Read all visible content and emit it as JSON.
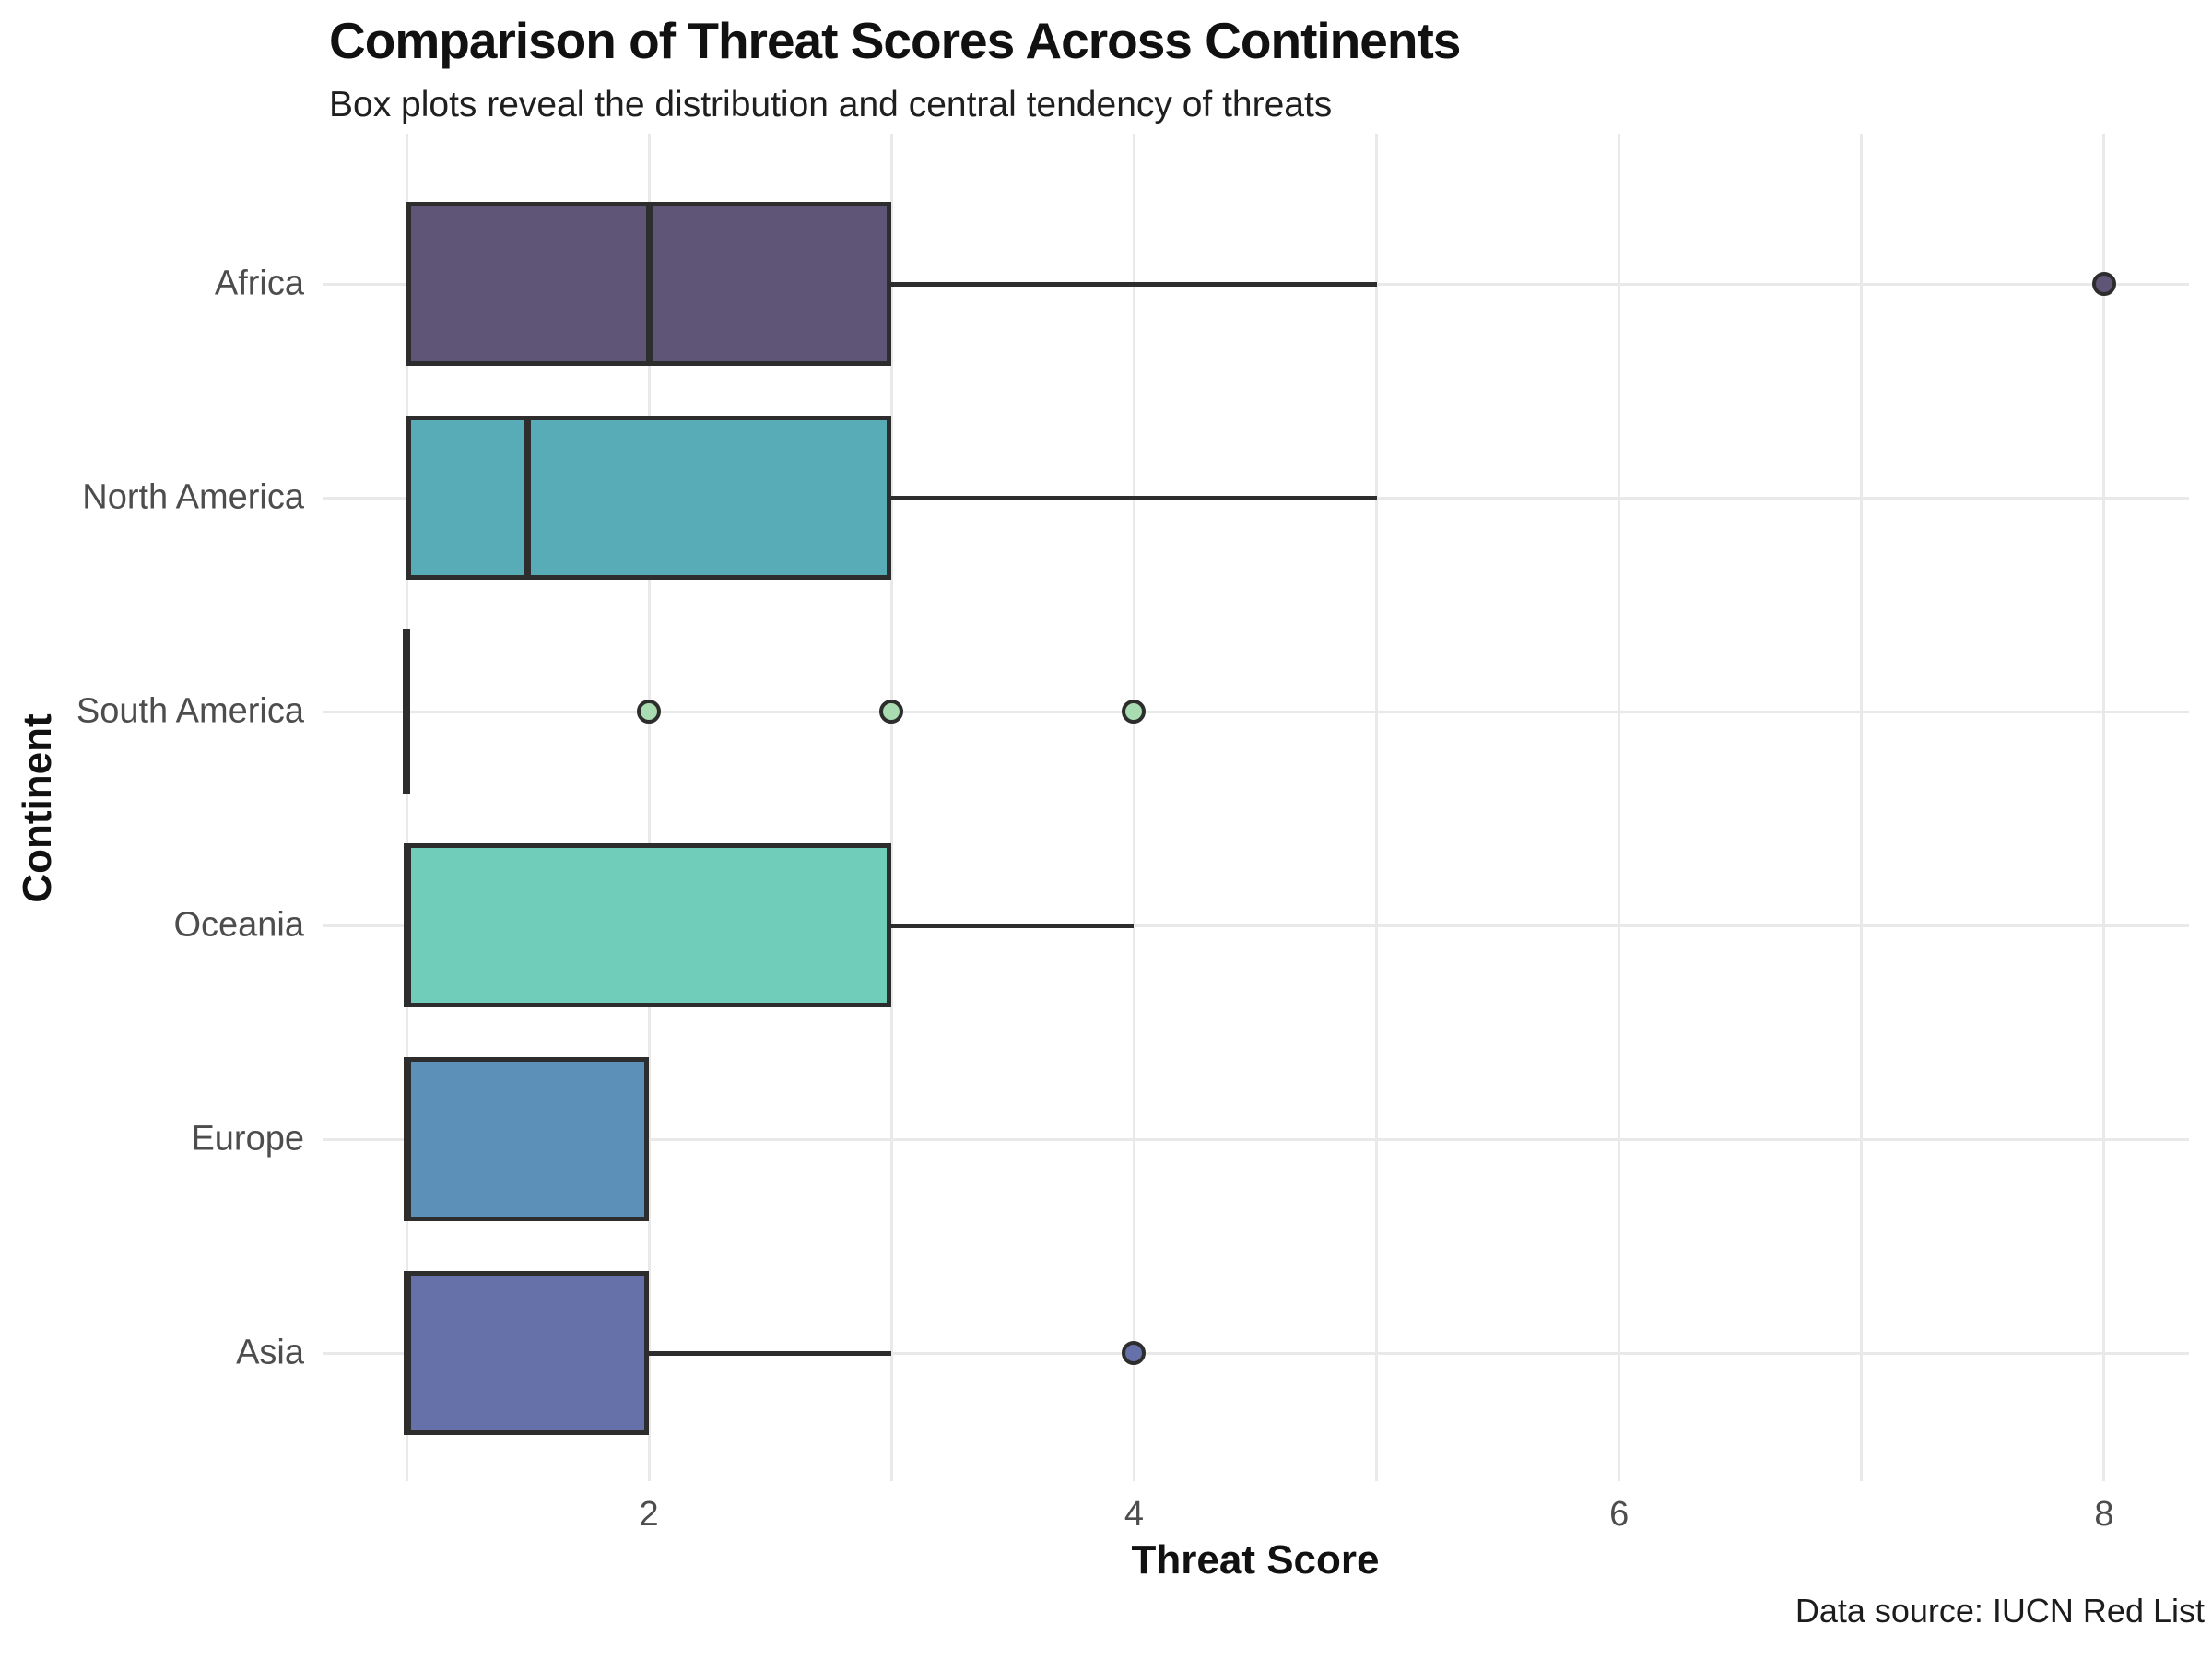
{
  "header": {
    "title": "Comparison of Threat Scores Across Continents",
    "subtitle": "Box plots reveal the distribution and central tendency of threats"
  },
  "caption": "Data source: IUCN Red List",
  "chart_data": {
    "type": "boxplot",
    "orientation": "horizontal",
    "title": "Comparison of Threat Scores Across Continents",
    "subtitle": "Box plots reveal the distribution and central tendency of threats",
    "xlabel": "Threat Score",
    "ylabel": "Continent",
    "xlim": [
      0.65,
      8.35
    ],
    "x_major_ticks": [
      2,
      4,
      6,
      8
    ],
    "x_gridlines": [
      1,
      2,
      3,
      4,
      5,
      6,
      7,
      8
    ],
    "grid": "on",
    "legend": "none",
    "categories": [
      "Africa",
      "North America",
      "South America",
      "Oceania",
      "Europe",
      "Asia"
    ],
    "boxes": [
      {
        "name": "Africa",
        "q1": 1,
        "median": 2,
        "q3": 3,
        "whisker_low": 1,
        "whisker_high": 5,
        "outliers": [
          8
        ],
        "fill": "#5e5577"
      },
      {
        "name": "North America",
        "q1": 1,
        "median": 1.5,
        "q3": 3,
        "whisker_low": 1,
        "whisker_high": 5,
        "outliers": [],
        "fill": "#58acb8"
      },
      {
        "name": "South America",
        "q1": 1,
        "median": 1,
        "q3": 1,
        "whisker_low": 1,
        "whisker_high": 1,
        "outliers": [
          2,
          3,
          4
        ],
        "fill": "#a9dcb0"
      },
      {
        "name": "Oceania",
        "q1": 1,
        "median": 1,
        "q3": 3,
        "whisker_low": 1,
        "whisker_high": 4,
        "outliers": [],
        "fill": "#70cdba"
      },
      {
        "name": "Europe",
        "q1": 1,
        "median": 1,
        "q3": 2,
        "whisker_low": 1,
        "whisker_high": 2,
        "outliers": [],
        "fill": "#5c90b8"
      },
      {
        "name": "Asia",
        "q1": 1,
        "median": 1,
        "q3": 2,
        "whisker_low": 1,
        "whisker_high": 3,
        "outliers": [
          4
        ],
        "fill": "#6571a8"
      }
    ],
    "colors": {
      "box_border": "#2d2d2d",
      "gridline": "#e9e9e9",
      "label_text": "#4d4d4d",
      "title_text": "#111111",
      "caption_text": "#1c1c1c",
      "background": "#ffffff"
    }
  }
}
